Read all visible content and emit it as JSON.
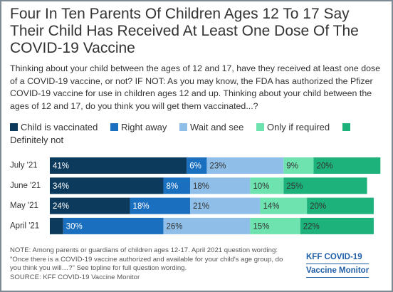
{
  "chart_data": {
    "type": "stacked-bar",
    "title": "Four In Ten Parents Of Children Ages 12 To 17 Say Their Child Has Received At Least One Dose Of The COVID-19 Vaccine",
    "subtitle": "Thinking about your child between the ages of 12 and 17, have they received at least one dose of a COVID-19 vaccine, or not? IF NOT: As you may know, the FDA has authorized the Pfizer COVID-19 vaccine for use in children ages 12 and up. Thinking about your child between the ages of 12 and 17, do you think you will get them vaccinated...?",
    "categories": [
      "July '21",
      "June '21",
      "May '21",
      "April '21"
    ],
    "xlim": [
      0,
      100
    ],
    "series": [
      {
        "name": "Child is vaccinated",
        "color": "#0c3a5d",
        "values": [
          41,
          34,
          24,
          4
        ],
        "value_labels": [
          "41%",
          "34%",
          "24%",
          null
        ]
      },
      {
        "name": "Right away",
        "color": "#1b6fbf",
        "values": [
          6,
          8,
          18,
          30
        ],
        "value_labels": [
          "6%",
          "8%",
          "18%",
          "30%"
        ]
      },
      {
        "name": "Wait and see",
        "color": "#8fbfe8",
        "values": [
          23,
          18,
          21,
          26
        ],
        "value_labels": [
          "23%",
          "18%",
          "21%",
          "26%"
        ]
      },
      {
        "name": "Only if required",
        "color": "#6ee3b0",
        "values": [
          9,
          10,
          14,
          15
        ],
        "value_labels": [
          "9%",
          "10%",
          "14%",
          "15%"
        ]
      },
      {
        "name": "Definitely not",
        "color": "#1db27c",
        "values": [
          20,
          25,
          20,
          22
        ],
        "value_labels": [
          "20%",
          "25%",
          "20%",
          "22%"
        ]
      }
    ],
    "note": "NOTE: Among parents or guardians of children ages 12-17. April 2021 question wording: \"Once there is a COVID-19 vaccine authorized and available for your child's age group, do you think you will…?\" See topline for full question wording.",
    "source": "SOURCE: KFF COVID-19 Vaccine Monitor",
    "logo": [
      "KFF COVID-19",
      "Vaccine Monitor"
    ]
  }
}
